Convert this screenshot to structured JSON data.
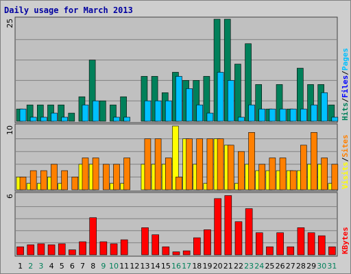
{
  "chart_data": {
    "type": "bar",
    "title": "Daily usage for March 2013",
    "colors": {
      "title": "#0000a0",
      "hits": "#00805a",
      "files": "#0000ff",
      "pages": "#00c0ff",
      "visits": "#ffff00",
      "sites": "#ff8000",
      "kbytes": "#ff0000",
      "weekday_label": "#000000",
      "weekend_label": "#00805a"
    },
    "categories": [
      "1",
      "2",
      "3",
      "4",
      "5",
      "6",
      "7",
      "8",
      "9",
      "10",
      "11",
      "12",
      "13",
      "14",
      "15",
      "16",
      "17",
      "18",
      "19",
      "20",
      "21",
      "22",
      "23",
      "24",
      "25",
      "26",
      "27",
      "28",
      "29",
      "30",
      "31"
    ],
    "weekend_days": [
      "2",
      "3",
      "9",
      "10",
      "16",
      "17",
      "23",
      "24",
      "30",
      "31"
    ],
    "panels": [
      {
        "id": "top",
        "ymax_label": "25",
        "ylim": [
          0,
          25
        ],
        "side_labels": [
          {
            "text": "Hits",
            "color": "#00805a"
          },
          {
            "text": "Files",
            "color": "#0000ff"
          },
          {
            "text": "Pages",
            "color": "#00c0ff"
          }
        ],
        "series": [
          {
            "name": "Hits",
            "color": "#00805a",
            "values": [
              3,
              4,
              4,
              4,
              4,
              2,
              6,
              15,
              5,
              4,
              6,
              0,
              11,
              11,
              7,
              12,
              10,
              10,
              11,
              25,
              25,
              14,
              19,
              9,
              3,
              9,
              3,
              13,
              9,
              9,
              4
            ]
          },
          {
            "name": "Pages",
            "color": "#00c0ff",
            "values": [
              3,
              1,
              1,
              2,
              1,
              0,
              4,
              5,
              0,
              1,
              1,
              0,
              5,
              5,
              5,
              11,
              8,
              4,
              2,
              12,
              10,
              1,
              4,
              3,
              3,
              3,
              3,
              3,
              4,
              7,
              1
            ]
          }
        ]
      },
      {
        "id": "middle",
        "ymax_label": "10",
        "ylim": [
          0,
          10
        ],
        "side_labels": [
          {
            "text": "Visits",
            "color": "#ffff00"
          },
          {
            "text": "Sites",
            "color": "#ff8000"
          }
        ],
        "series": [
          {
            "name": "Visits",
            "color": "#ffff00",
            "values": [
              2,
              1,
              1,
              2,
              1,
              0,
              4,
              4,
              0,
              1,
              1,
              0,
              4,
              4,
              4,
              10,
              8,
              4,
              1,
              8,
              7,
              1,
              4,
              3,
              3,
              3,
              3,
              3,
              4,
              4,
              1
            ]
          },
          {
            "name": "Sites",
            "color": "#ff8000",
            "values": [
              2,
              3,
              3,
              4,
              3,
              2,
              5,
              5,
              4,
              4,
              5,
              0,
              8,
              8,
              5,
              2,
              8,
              8,
              8,
              8,
              7,
              6,
              9,
              4,
              5,
              5,
              3,
              7,
              9,
              5,
              4
            ]
          }
        ]
      },
      {
        "id": "bottom",
        "ymax_label": "6",
        "ylim": [
          0,
          6
        ],
        "side_labels": [
          {
            "text": "KBytes",
            "color": "#ff0000"
          }
        ],
        "series": [
          {
            "name": "KBytes",
            "color": "#ff0000",
            "values": [
              0.8,
              1.0,
              1.1,
              1.0,
              1.1,
              0.5,
              1.3,
              3.7,
              1.3,
              1.1,
              1.5,
              0,
              2.7,
              2.0,
              0.8,
              0.3,
              0.4,
              1.7,
              2.5,
              5.6,
              5.9,
              3.3,
              4.6,
              2.2,
              0.8,
              2.2,
              0.8,
              2.7,
              2.2,
              1.9,
              0.8
            ]
          }
        ]
      }
    ]
  }
}
